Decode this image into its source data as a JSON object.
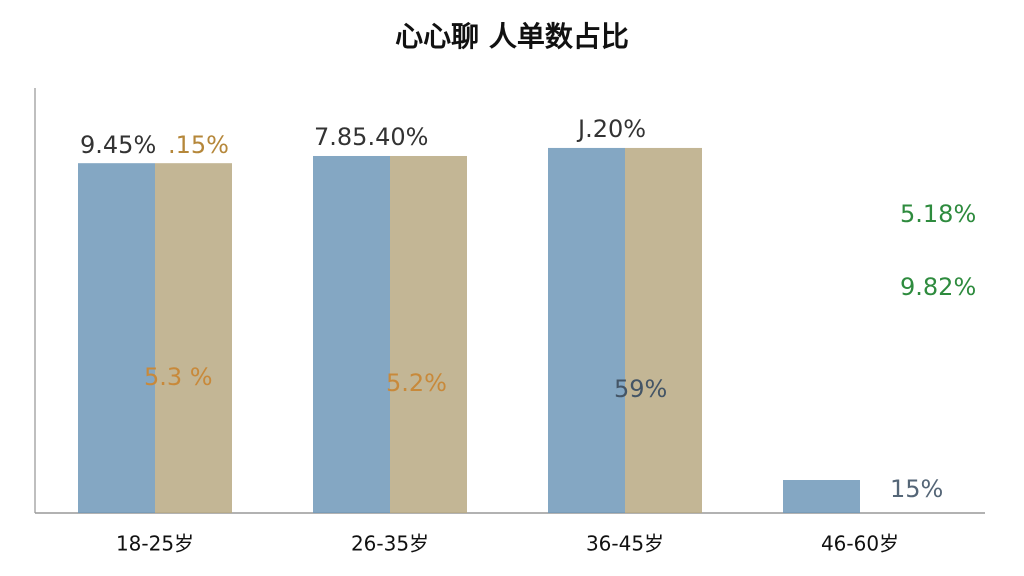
{
  "chart_data": {
    "type": "bar",
    "title": "心心聊 人单数占比",
    "categories": [
      "18-25岁",
      "26-35岁",
      "36-45岁",
      "46-60岁"
    ],
    "series": [
      {
        "name": null,
        "color": "#6f98b8",
        "values": [
          82.7,
          84.4,
          86.3,
          7.8
        ]
      },
      {
        "name": null,
        "color": "#b9a982",
        "values": [
          82.7,
          84.4,
          86.3,
          null
        ]
      }
    ],
    "ylim": [
      0,
      100
    ],
    "annotations": [
      {
        "text": "9.45%",
        "color": "#333333"
      },
      {
        "text": ".15%",
        "color": "#b5873a"
      },
      {
        "text": "7.85.40%",
        "color": "#333333"
      },
      {
        "text": "J.20%",
        "color": "#333333"
      },
      {
        "text": "5.18%",
        "color": "#2e8b3e"
      },
      {
        "text": "9.82%",
        "color": "#2e8b3e"
      },
      {
        "text": "5.3 %",
        "color": "#c8893a"
      },
      {
        "text": "5.2%",
        "color": "#c8893a"
      },
      {
        "text": "59%",
        "color": "#445566"
      },
      {
        "text": "15%",
        "color": "#556677"
      }
    ]
  }
}
